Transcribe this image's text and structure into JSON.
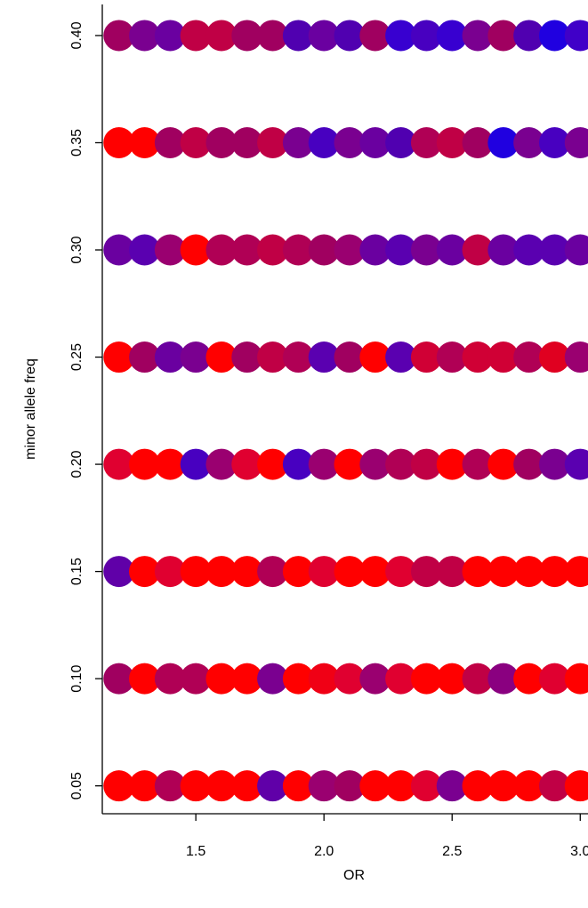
{
  "chart_data": {
    "type": "scatter",
    "xlabel": "OR",
    "ylabel": "minor allele freq",
    "x": [
      1.2,
      1.3,
      1.4,
      1.5,
      1.6,
      1.7,
      1.8,
      1.9,
      2.0,
      2.1,
      2.2,
      2.3,
      2.4,
      2.5,
      2.6,
      2.7,
      2.8,
      2.9,
      3.0
    ],
    "series": [
      {
        "values": [
          0.05,
          0.05,
          0.05,
          0.05,
          0.05,
          0.05,
          0.05,
          0.05,
          0.05,
          0.05,
          0.05,
          0.05,
          0.05,
          0.05,
          0.05,
          0.05,
          0.05,
          0.05,
          0.05
        ],
        "colors": [
          "#ff0000",
          "#ff0000",
          "#b00055",
          "#ff0000",
          "#ff0000",
          "#ff0000",
          "#6000a8",
          "#ff0000",
          "#9a0070",
          "#a00060",
          "#ff0000",
          "#ff0000",
          "#e00030",
          "#7a0090",
          "#ff0000",
          "#ff0000",
          "#ff0000",
          "#c00045",
          "#ff0000"
        ]
      },
      {
        "values": [
          0.1,
          0.1,
          0.1,
          0.1,
          0.1,
          0.1,
          0.1,
          0.1,
          0.1,
          0.1,
          0.1,
          0.1,
          0.1,
          0.1,
          0.1,
          0.1,
          0.1,
          0.1,
          0.1
        ],
        "colors": [
          "#a00060",
          "#ff0000",
          "#b00055",
          "#b00055",
          "#ff0000",
          "#ff0000",
          "#7a0090",
          "#ff0000",
          "#f00015",
          "#e00030",
          "#9a0070",
          "#e00030",
          "#ff0000",
          "#ff0000",
          "#c00045",
          "#8a0080",
          "#ff0000",
          "#e00030",
          "#ff0000"
        ]
      },
      {
        "values": [
          0.15,
          0.15,
          0.15,
          0.15,
          0.15,
          0.15,
          0.15,
          0.15,
          0.15,
          0.15,
          0.15,
          0.15,
          0.15,
          0.15,
          0.15,
          0.15,
          0.15,
          0.15,
          0.15
        ],
        "colors": [
          "#6000a8",
          "#ff0000",
          "#e00030",
          "#ff0000",
          "#ff0000",
          "#ff0000",
          "#b00055",
          "#ff0000",
          "#e00030",
          "#ff0000",
          "#ff0000",
          "#e00030",
          "#c00045",
          "#c00045",
          "#ff0000",
          "#ff0000",
          "#ff0000",
          "#ff0000",
          "#ff0000"
        ]
      },
      {
        "values": [
          0.2,
          0.2,
          0.2,
          0.2,
          0.2,
          0.2,
          0.2,
          0.2,
          0.2,
          0.2,
          0.2,
          0.2,
          0.2,
          0.2,
          0.2,
          0.2,
          0.2,
          0.2,
          0.2
        ],
        "colors": [
          "#e00030",
          "#ff0000",
          "#ff0000",
          "#4800c0",
          "#9a0070",
          "#e00030",
          "#ff0000",
          "#4800c0",
          "#9a0070",
          "#ff0000",
          "#9a0070",
          "#b00055",
          "#c00045",
          "#ff0000",
          "#b00055",
          "#ff0000",
          "#a00060",
          "#7a0090",
          "#5a00b0"
        ]
      },
      {
        "values": [
          0.25,
          0.25,
          0.25,
          0.25,
          0.25,
          0.25,
          0.25,
          0.25,
          0.25,
          0.25,
          0.25,
          0.25,
          0.25,
          0.25,
          0.25,
          0.25,
          0.25,
          0.25,
          0.25
        ],
        "colors": [
          "#ff0000",
          "#a00060",
          "#6a00a0",
          "#7a0090",
          "#ff0000",
          "#a00060",
          "#c00045",
          "#b00055",
          "#5a00b0",
          "#a00060",
          "#ff0000",
          "#5a00b0",
          "#d00035",
          "#b00055",
          "#d00035",
          "#d00035",
          "#b00055",
          "#e00020",
          "#9a0070"
        ]
      },
      {
        "values": [
          0.3,
          0.3,
          0.3,
          0.3,
          0.3,
          0.3,
          0.3,
          0.3,
          0.3,
          0.3,
          0.3,
          0.3,
          0.3,
          0.3,
          0.3,
          0.3,
          0.3,
          0.3,
          0.3
        ],
        "colors": [
          "#6a00a0",
          "#5a00b0",
          "#9a0070",
          "#ff0000",
          "#b00055",
          "#b00055",
          "#c00045",
          "#b00055",
          "#a00060",
          "#9a0070",
          "#6a00a0",
          "#5a00b0",
          "#7a0090",
          "#6a00a0",
          "#c00045",
          "#6a00a0",
          "#5a00b0",
          "#5a00b0",
          "#6a00a0"
        ]
      },
      {
        "values": [
          0.35,
          0.35,
          0.35,
          0.35,
          0.35,
          0.35,
          0.35,
          0.35,
          0.35,
          0.35,
          0.35,
          0.35,
          0.35,
          0.35,
          0.35,
          0.35,
          0.35,
          0.35,
          0.35
        ],
        "colors": [
          "#ff0000",
          "#ff0000",
          "#a00060",
          "#c00045",
          "#a00060",
          "#a00060",
          "#c00045",
          "#7a0090",
          "#4800c0",
          "#7a0090",
          "#6a00a0",
          "#5000b0",
          "#b00055",
          "#c00045",
          "#a00060",
          "#2000e0",
          "#7a0090",
          "#4800c0",
          "#7a0090"
        ]
      },
      {
        "values": [
          0.4,
          0.4,
          0.4,
          0.4,
          0.4,
          0.4,
          0.4,
          0.4,
          0.4,
          0.4,
          0.4,
          0.4,
          0.4,
          0.4,
          0.4,
          0.4,
          0.4,
          0.4,
          0.4
        ],
        "colors": [
          "#a00060",
          "#7a0090",
          "#6a00a0",
          "#c00045",
          "#c00045",
          "#a00060",
          "#a00060",
          "#5000b0",
          "#6a00a0",
          "#5000b0",
          "#a00060",
          "#3800d0",
          "#4800c0",
          "#3800d0",
          "#7a0090",
          "#a00060",
          "#5000b0",
          "#2000e0",
          "#4000c8"
        ]
      }
    ],
    "xlim": [
      1.135,
      3.065
    ],
    "ylim": [
      0.037,
      0.4145
    ],
    "xticks": [
      1.5,
      {
        "value": 2,
        "label": "2.0"
      },
      2.5,
      {
        "value": 3,
        "label": "3.0"
      }
    ],
    "yticks": [
      0.05,
      {
        "value": 0.1,
        "label": "0.10"
      },
      0.15,
      {
        "value": 0.2,
        "label": "0.20"
      },
      0.25,
      {
        "value": 0.3,
        "label": "0.30"
      },
      0.35,
      {
        "value": 0.4,
        "label": "0.40"
      }
    ]
  }
}
